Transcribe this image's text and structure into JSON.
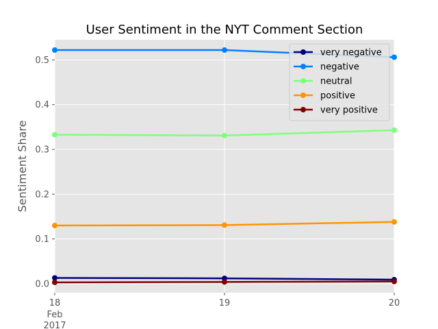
{
  "chart_data": {
    "type": "line",
    "title": "User Sentiment in the NYT Comment Section",
    "xlabel": "",
    "ylabel": "Sentiment Share",
    "x": [
      "18",
      "19",
      "20"
    ],
    "x_sub_labels": [
      "Feb",
      "2017"
    ],
    "ylim": [
      -0.02,
      0.545
    ],
    "yticks": [
      0.0,
      0.1,
      0.2,
      0.3,
      0.4,
      0.5
    ],
    "ytick_labels": [
      "0.0",
      "0.1",
      "0.2",
      "0.3",
      "0.4",
      "0.5"
    ],
    "grid": true,
    "legend_position": "top-right",
    "series": [
      {
        "name": "very negative",
        "color": "#00007f",
        "values": [
          0.013,
          0.012,
          0.009
        ]
      },
      {
        "name": "negative",
        "color": "#0080ff",
        "values": [
          0.522,
          0.522,
          0.506
        ]
      },
      {
        "name": "neutral",
        "color": "#7dff7a",
        "values": [
          0.333,
          0.331,
          0.343
        ]
      },
      {
        "name": "positive",
        "color": "#ff9400",
        "values": [
          0.13,
          0.131,
          0.138
        ]
      },
      {
        "name": "very positive",
        "color": "#7f0000",
        "values": [
          0.003,
          0.004,
          0.005
        ]
      }
    ]
  }
}
